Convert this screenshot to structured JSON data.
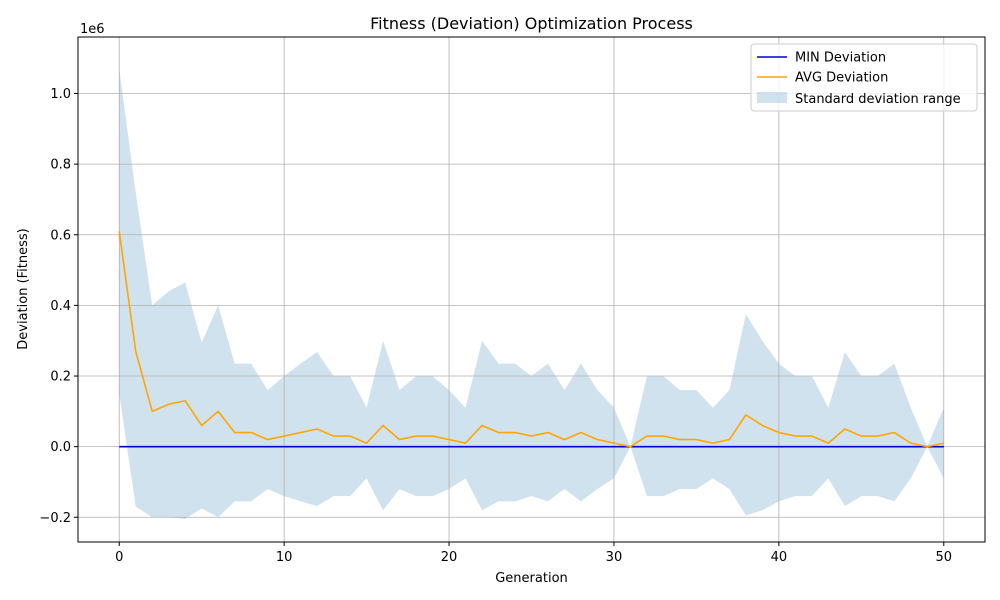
{
  "chart_data": {
    "type": "line",
    "title": "Fitness (Deviation) Optimization Process",
    "xlabel": "Generation",
    "ylabel": "Deviation (Fitness)",
    "y_scale_label": "1e6",
    "xlim": [
      -2.5,
      52.5
    ],
    "ylim": [
      -0.27,
      1.16
    ],
    "x_ticks": [
      0,
      10,
      20,
      30,
      40,
      50
    ],
    "x_tick_labels": [
      "0",
      "10",
      "20",
      "30",
      "40",
      "50"
    ],
    "y_ticks": [
      -0.2,
      0.0,
      0.2,
      0.4,
      0.6,
      0.8,
      1.0
    ],
    "y_tick_labels": [
      "−0.2",
      "0.0",
      "0.2",
      "0.4",
      "0.6",
      "0.8",
      "1.0"
    ],
    "grid": true,
    "legend_position": "top-right",
    "x": [
      0,
      1,
      2,
      3,
      4,
      5,
      6,
      7,
      8,
      9,
      10,
      11,
      12,
      13,
      14,
      15,
      16,
      17,
      18,
      19,
      20,
      21,
      22,
      23,
      24,
      25,
      26,
      27,
      28,
      29,
      30,
      31,
      32,
      33,
      34,
      35,
      36,
      37,
      38,
      39,
      40,
      41,
      42,
      43,
      44,
      45,
      46,
      47,
      48,
      49,
      50
    ],
    "series": [
      {
        "name": "MIN Deviation",
        "color": "#0000cd",
        "values": [
          0,
          0,
          0,
          0,
          0,
          0,
          0,
          0,
          0,
          0,
          0,
          0,
          0,
          0,
          0,
          0,
          0,
          0,
          0,
          0,
          0,
          0,
          0,
          0,
          0,
          0,
          0,
          0,
          0,
          0,
          0,
          0,
          0,
          0,
          0,
          0,
          0,
          0,
          0,
          0,
          0,
          0,
          0,
          0,
          0,
          0,
          0,
          0,
          0,
          0,
          0
        ]
      },
      {
        "name": "AVG Deviation",
        "color": "#ffa500",
        "values": [
          0.61,
          0.27,
          0.1,
          0.12,
          0.13,
          0.06,
          0.1,
          0.04,
          0.04,
          0.02,
          0.03,
          0.04,
          0.05,
          0.03,
          0.03,
          0.01,
          0.06,
          0.02,
          0.03,
          0.03,
          0.02,
          0.01,
          0.06,
          0.04,
          0.04,
          0.03,
          0.04,
          0.02,
          0.04,
          0.02,
          0.01,
          0.0,
          0.03,
          0.03,
          0.02,
          0.02,
          0.01,
          0.02,
          0.09,
          0.06,
          0.04,
          0.03,
          0.03,
          0.01,
          0.05,
          0.03,
          0.03,
          0.04,
          0.01,
          0.0,
          0.01
        ]
      }
    ],
    "band": {
      "name": "Standard deviation range",
      "color": "#b3cfe4",
      "upper": [
        1.07,
        0.72,
        0.4,
        0.44,
        0.465,
        0.295,
        0.4,
        0.235,
        0.235,
        0.16,
        0.2,
        0.235,
        0.268,
        0.2,
        0.2,
        0.11,
        0.3,
        0.16,
        0.2,
        0.2,
        0.16,
        0.11,
        0.3,
        0.235,
        0.235,
        0.2,
        0.235,
        0.16,
        0.235,
        0.16,
        0.11,
        0.0,
        0.2,
        0.2,
        0.16,
        0.16,
        0.11,
        0.16,
        0.375,
        0.3,
        0.235,
        0.2,
        0.2,
        0.11,
        0.268,
        0.2,
        0.2,
        0.235,
        0.11,
        0.0,
        0.11
      ],
      "lower": [
        0.15,
        -0.17,
        -0.2,
        -0.2,
        -0.205,
        -0.175,
        -0.2,
        -0.155,
        -0.155,
        -0.12,
        -0.14,
        -0.155,
        -0.168,
        -0.14,
        -0.14,
        -0.09,
        -0.18,
        -0.12,
        -0.14,
        -0.14,
        -0.12,
        -0.09,
        -0.18,
        -0.155,
        -0.155,
        -0.14,
        -0.155,
        -0.12,
        -0.155,
        -0.12,
        -0.09,
        0.0,
        -0.14,
        -0.14,
        -0.12,
        -0.12,
        -0.09,
        -0.12,
        -0.195,
        -0.18,
        -0.155,
        -0.14,
        -0.14,
        -0.09,
        -0.168,
        -0.14,
        -0.14,
        -0.155,
        -0.09,
        0.0,
        -0.09
      ]
    },
    "legend": [
      "MIN Deviation",
      "AVG Deviation",
      "Standard deviation range"
    ]
  }
}
